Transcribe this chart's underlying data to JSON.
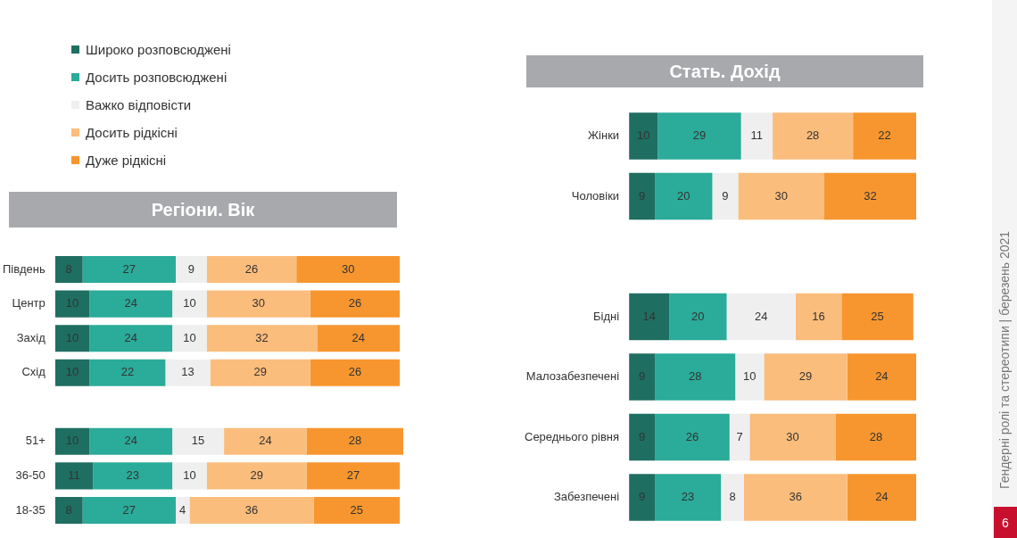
{
  "chart_data": [
    {
      "type": "bar",
      "title": "Регіони. Вік",
      "orientation": "horizontal",
      "stacked": true,
      "data_labels": true,
      "legend": "top left",
      "tick_labels": "y",
      "categories": [
        "Південь",
        "Центр",
        "Захід",
        "Схід",
        null,
        "51+",
        "36-50",
        "18-35"
      ],
      "series": [
        {
          "name": "Широко розповсюджені",
          "color": "#1f6e62",
          "values": [
            8,
            10,
            10,
            10,
            null,
            10,
            11,
            8
          ]
        },
        {
          "name": "Досить розповсюджені",
          "color": "#2bab99",
          "values": [
            27,
            24,
            24,
            22,
            null,
            24,
            23,
            27
          ]
        },
        {
          "name": "Важко відповісти",
          "color": "#efefef",
          "values": [
            9,
            10,
            10,
            13,
            null,
            15,
            10,
            4
          ]
        },
        {
          "name": "Досить рідкісні",
          "color": "#fbbd7c",
          "values": [
            26,
            30,
            32,
            29,
            null,
            24,
            29,
            36
          ]
        },
        {
          "name": "Дуже рідкісні",
          "color": "#f7962f",
          "values": [
            30,
            26,
            24,
            26,
            null,
            28,
            27,
            25
          ]
        }
      ]
    },
    {
      "type": "bar",
      "title": "Стать. Дохід",
      "orientation": "horizontal",
      "stacked": true,
      "data_labels": true,
      "tick_labels": "y",
      "categories": [
        "Жінки",
        "Чоловіки",
        null,
        "Бідні",
        "Малозабезпечені",
        "Середнього рівня",
        "Забезпечені"
      ],
      "series": [
        {
          "color": "#1f6e62",
          "values": [
            10,
            9,
            null,
            14,
            9,
            9,
            9
          ]
        },
        {
          "color": "#2bab99",
          "values": [
            29,
            20,
            null,
            20,
            28,
            26,
            23
          ]
        },
        {
          "color": "#efefef",
          "values": [
            11,
            9,
            null,
            24,
            10,
            7,
            8
          ]
        },
        {
          "color": "#fbbd7c",
          "values": [
            28,
            30,
            null,
            16,
            29,
            30,
            36
          ]
        },
        {
          "color": "#f7962f",
          "values": [
            22,
            32,
            null,
            25,
            24,
            28,
            24
          ]
        }
      ],
      "annotations": [
        "Гендерні ролі та стереотипи | березень 2021",
        "6"
      ]
    }
  ]
}
